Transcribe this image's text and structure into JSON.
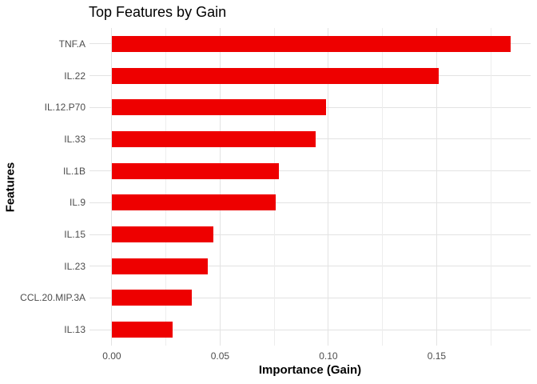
{
  "chart_data": {
    "type": "bar",
    "orientation": "horizontal",
    "title": "Top Features by Gain",
    "xlabel": "Importance (Gain)",
    "ylabel": "Features",
    "categories": [
      "TNF.A",
      "IL.22",
      "IL.12.P70",
      "IL.33",
      "IL.1B",
      "IL.9",
      "IL.15",
      "IL.23",
      "CCL.20.MIP.3A",
      "IL.13"
    ],
    "values": [
      0.184,
      0.151,
      0.099,
      0.094,
      0.077,
      0.0755,
      0.047,
      0.0445,
      0.037,
      0.028
    ],
    "x_ticks": [
      {
        "value": 0.0,
        "label": "0.00"
      },
      {
        "value": 0.05,
        "label": "0.05"
      },
      {
        "value": 0.1,
        "label": "0.10"
      },
      {
        "value": 0.15,
        "label": "0.15"
      }
    ],
    "x_minor_ticks": [
      0.025,
      0.075,
      0.125,
      0.175
    ],
    "xlim": [
      -0.0103,
      0.1934
    ],
    "bar_color": "#ee0000",
    "grid": true,
    "legend": false,
    "grid_major_color": "#e3e3e3",
    "grid_minor_color": "#ededed",
    "axis_text_color": "#4d4d4d",
    "title_color": "#000000",
    "background_color": "#ffffff"
  }
}
